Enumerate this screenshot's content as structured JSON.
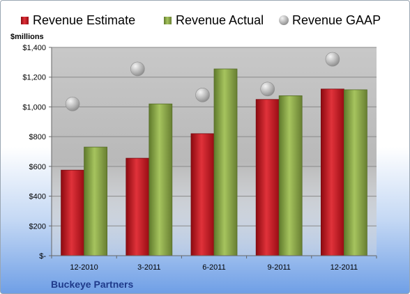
{
  "chart_data": {
    "type": "bar",
    "title": "",
    "ylabel": "$millions",
    "xlabel": "",
    "categories": [
      "12-2010",
      "3-2011",
      "6-2011",
      "9-2011",
      "12-2011"
    ],
    "series": [
      {
        "name": "Revenue Estimate",
        "kind": "bar",
        "color": "#c8141e",
        "values": [
          575,
          655,
          820,
          1050,
          1120
        ]
      },
      {
        "name": "Revenue Actual",
        "kind": "bar",
        "color": "#8fae48",
        "values": [
          730,
          1020,
          1255,
          1075,
          1115
        ]
      },
      {
        "name": "Revenue GAAP",
        "kind": "marker",
        "color": "#b4b4b4",
        "values": [
          1020,
          1255,
          1080,
          1120,
          1320
        ]
      }
    ],
    "ylim": [
      0,
      1400
    ],
    "yticks": [
      0,
      200,
      400,
      600,
      800,
      1000,
      1200,
      1400
    ],
    "ytick_labels": [
      "$-",
      "$200",
      "$400",
      "$600",
      "$800",
      "$1,000",
      "$1,200",
      "$1,400"
    ],
    "grid": true,
    "legend_position": "top",
    "footer": "Buckeye Partners"
  }
}
